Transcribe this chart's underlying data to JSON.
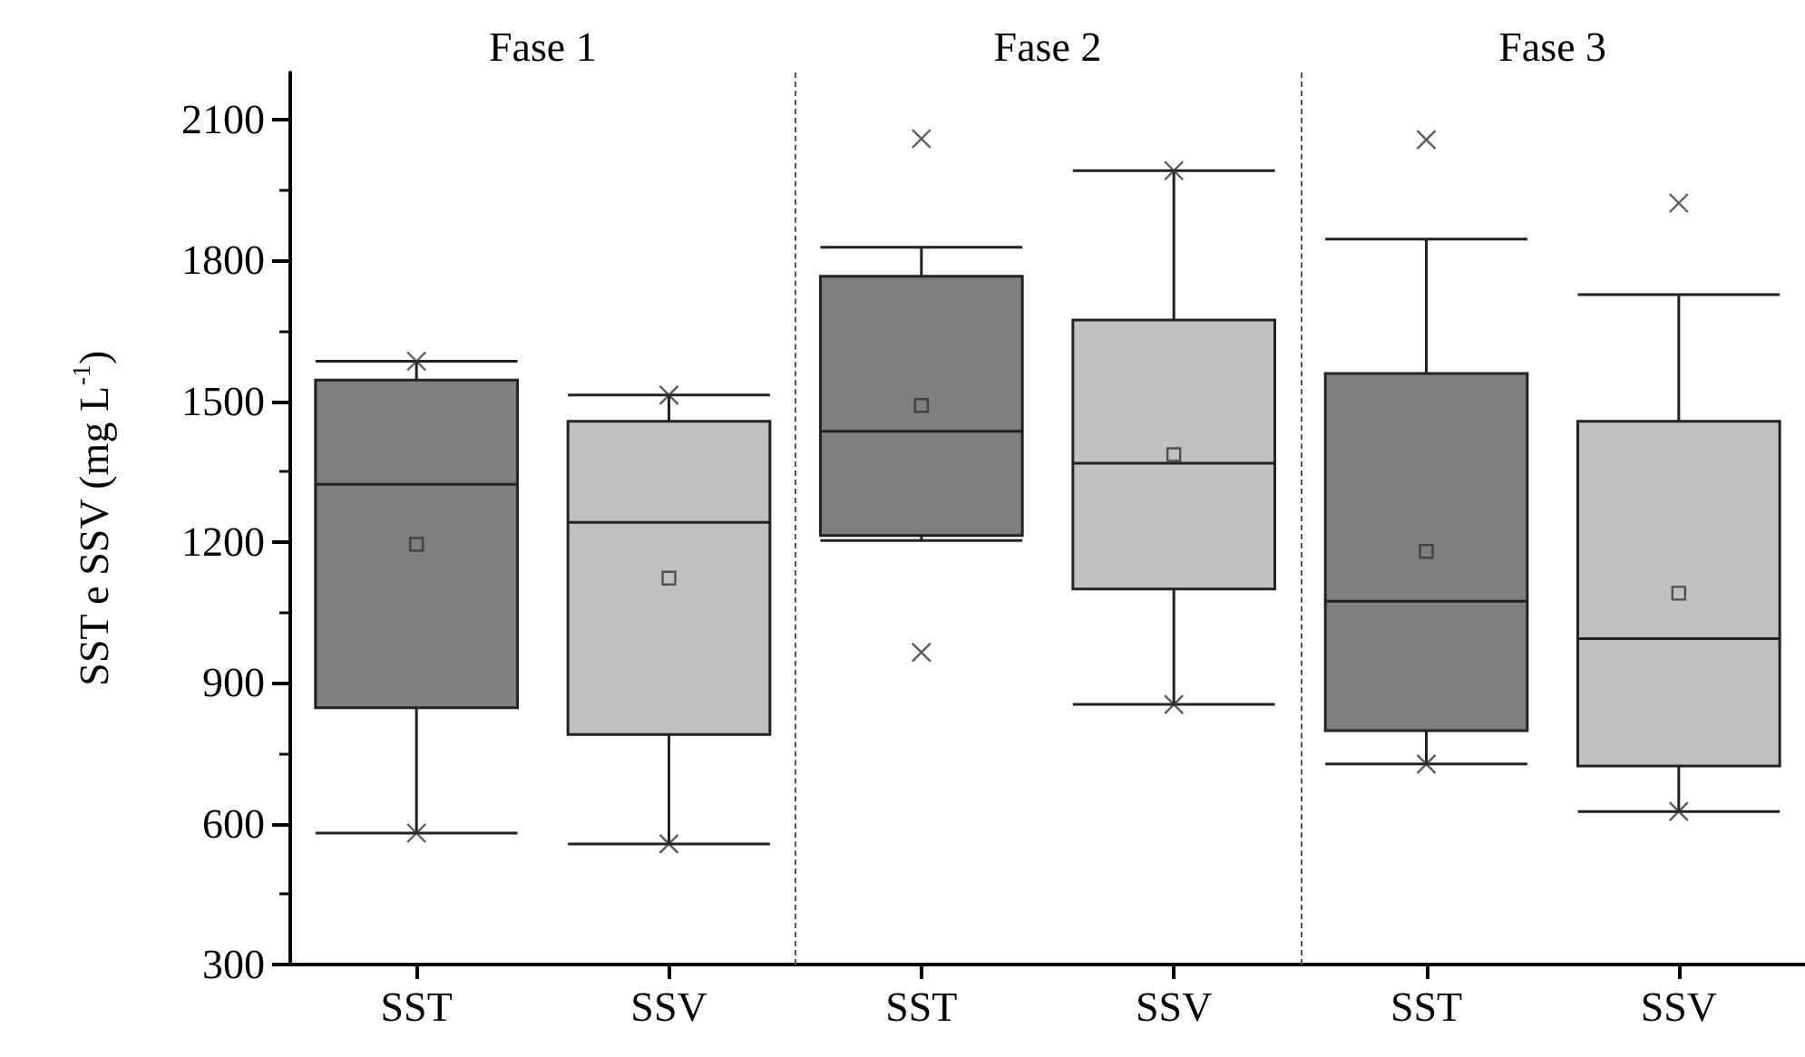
{
  "chart_data": {
    "type": "box",
    "ylabel": "SST e SSV (mg L$^{-1}$)",
    "annotations": [
      "Fase 1",
      "Fase 2",
      "Fase 3"
    ],
    "categories": [
      "SST",
      "SSV",
      "SST",
      "SSV",
      "SST",
      "SSV"
    ],
    "colors": [
      "#7f7f7f",
      "#c0c0c0",
      "#7f7f7f",
      "#c0c0c0",
      "#7f7f7f",
      "#c0c0c0"
    ],
    "boxes": [
      {
        "low": 580,
        "q1": 847,
        "median": 1323,
        "q3": 1545,
        "high": 1585,
        "mean": 1195,
        "outliers": [
          580,
          1585
        ]
      },
      {
        "low": 557,
        "q1": 790,
        "median": 1242,
        "q3": 1457,
        "high": 1513,
        "mean": 1123,
        "outliers": [
          557,
          1513
        ]
      },
      {
        "low": 1203,
        "q1": 1214,
        "median": 1436,
        "q3": 1766,
        "high": 1828,
        "mean": 1491,
        "outliers": [
          965,
          2059
        ]
      },
      {
        "low": 854,
        "q1": 1100,
        "median": 1368,
        "q3": 1673,
        "high": 1991,
        "mean": 1386,
        "outliers": [
          854,
          1991
        ]
      },
      {
        "low": 727,
        "q1": 798,
        "median": 1074,
        "q3": 1559,
        "high": 1845,
        "mean": 1180,
        "outliers": [
          727,
          2057
        ]
      },
      {
        "low": 626,
        "q1": 723,
        "median": 994,
        "q3": 1457,
        "high": 1727,
        "mean": 1091,
        "outliers": [
          626,
          1922
        ]
      }
    ],
    "ylim": [
      300,
      2200
    ],
    "yticks": [
      300,
      600,
      900,
      1200,
      1500,
      1800,
      2100
    ]
  }
}
